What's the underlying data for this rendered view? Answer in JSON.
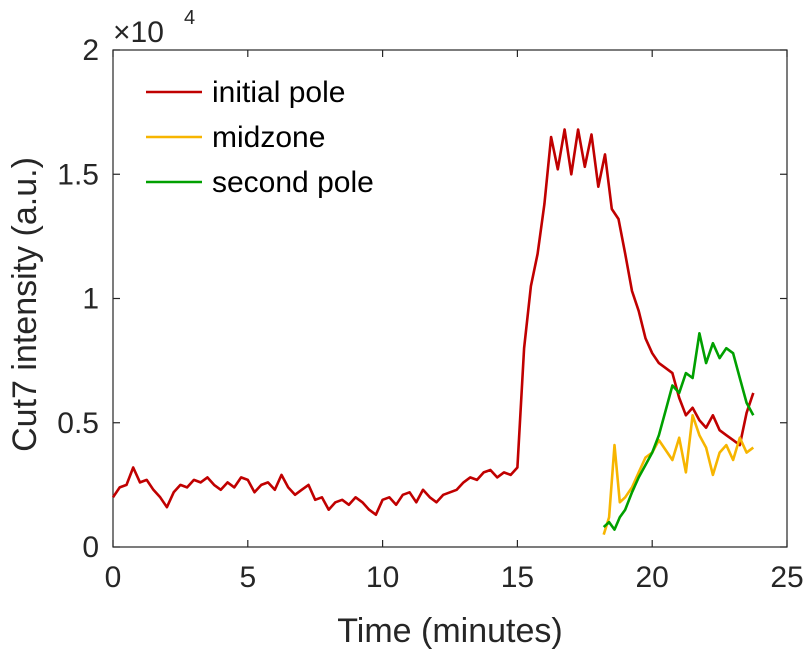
{
  "chart_data": {
    "type": "line",
    "title": "",
    "xlabel": "Time (minutes)",
    "ylabel": "Cut7 intensity (a.u.)",
    "xlim": [
      0,
      25
    ],
    "ylim": [
      0,
      20000
    ],
    "xticks": [
      0,
      5,
      10,
      15,
      20,
      25
    ],
    "xtick_labels": [
      "0",
      "5",
      "10",
      "15",
      "20",
      "25"
    ],
    "yticks": [
      0,
      5000,
      10000,
      15000,
      20000
    ],
    "ytick_labels": [
      "0",
      "0.5",
      "1",
      "1.5",
      "2"
    ],
    "y_multiplier_base": "×10",
    "y_multiplier_exp": "4",
    "grid": false,
    "legend_position": "top-left",
    "series": [
      {
        "name": "initial pole",
        "color": "#C00000",
        "x": [
          0.0,
          0.25,
          0.5,
          0.75,
          1.0,
          1.25,
          1.5,
          1.75,
          2.0,
          2.25,
          2.5,
          2.75,
          3.0,
          3.25,
          3.5,
          3.75,
          4.0,
          4.25,
          4.5,
          4.75,
          5.0,
          5.25,
          5.5,
          5.75,
          6.0,
          6.25,
          6.5,
          6.75,
          7.0,
          7.25,
          7.5,
          7.75,
          8.0,
          8.25,
          8.5,
          8.75,
          9.0,
          9.25,
          9.5,
          9.75,
          10.0,
          10.25,
          10.5,
          10.75,
          11.0,
          11.25,
          11.5,
          11.75,
          12.0,
          12.25,
          12.5,
          12.75,
          13.0,
          13.25,
          13.5,
          13.75,
          14.0,
          14.25,
          14.5,
          14.75,
          15.0,
          15.25,
          15.5,
          15.75,
          16.0,
          16.25,
          16.5,
          16.75,
          17.0,
          17.25,
          17.5,
          17.75,
          18.0,
          18.25,
          18.5,
          18.75,
          19.0,
          19.25,
          19.5,
          19.75,
          20.0,
          20.25,
          20.5,
          20.75,
          21.0,
          21.25,
          21.5,
          21.75,
          22.0,
          22.25,
          22.5,
          22.75,
          23.0,
          23.25,
          23.5,
          23.75
        ],
        "values": [
          2000,
          2400,
          2500,
          3200,
          2600,
          2700,
          2300,
          2000,
          1600,
          2200,
          2500,
          2400,
          2700,
          2600,
          2800,
          2500,
          2300,
          2600,
          2400,
          2800,
          2700,
          2200,
          2500,
          2600,
          2300,
          2900,
          2400,
          2100,
          2300,
          2500,
          1900,
          2000,
          1500,
          1800,
          1900,
          1700,
          2000,
          1800,
          1500,
          1300,
          1900,
          2000,
          1700,
          2100,
          2200,
          1800,
          2300,
          2000,
          1800,
          2100,
          2200,
          2300,
          2600,
          2800,
          2700,
          3000,
          3100,
          2800,
          3000,
          2900,
          3200,
          8000,
          10500,
          11800,
          13800,
          16500,
          15200,
          16800,
          15000,
          16800,
          15300,
          16600,
          14500,
          15800,
          13600,
          13200,
          11800,
          10300,
          9500,
          8400,
          7800,
          7400,
          7200,
          7000,
          6000,
          5300,
          5600,
          5100,
          4800,
          5300,
          4700,
          4500,
          4300,
          4100,
          5400,
          6200
        ]
      },
      {
        "name": "midzone",
        "color": "#F7B500",
        "x": [
          18.2,
          18.4,
          18.6,
          18.8,
          19.0,
          19.25,
          19.5,
          19.75,
          20.0,
          20.25,
          20.5,
          20.75,
          21.0,
          21.25,
          21.5,
          21.75,
          22.0,
          22.25,
          22.5,
          22.75,
          23.0,
          23.25,
          23.5,
          23.75
        ],
        "values": [
          500,
          1200,
          4100,
          1800,
          2000,
          2400,
          3000,
          3600,
          3800,
          4300,
          3900,
          3500,
          4400,
          3000,
          5300,
          4500,
          4000,
          2900,
          3800,
          4100,
          3500,
          4400,
          3800,
          4000
        ]
      },
      {
        "name": "second pole",
        "color": "#00A000",
        "x": [
          18.2,
          18.4,
          18.6,
          18.8,
          19.0,
          19.25,
          19.5,
          19.75,
          20.0,
          20.25,
          20.5,
          20.75,
          21.0,
          21.25,
          21.5,
          21.75,
          22.0,
          22.25,
          22.5,
          22.75,
          23.0,
          23.25,
          23.5,
          23.75
        ],
        "values": [
          800,
          1000,
          700,
          1200,
          1500,
          2200,
          2800,
          3300,
          3800,
          4500,
          5500,
          6500,
          6200,
          7000,
          6800,
          8600,
          7400,
          8200,
          7600,
          8000,
          7800,
          6800,
          5800,
          5300
        ]
      }
    ]
  }
}
